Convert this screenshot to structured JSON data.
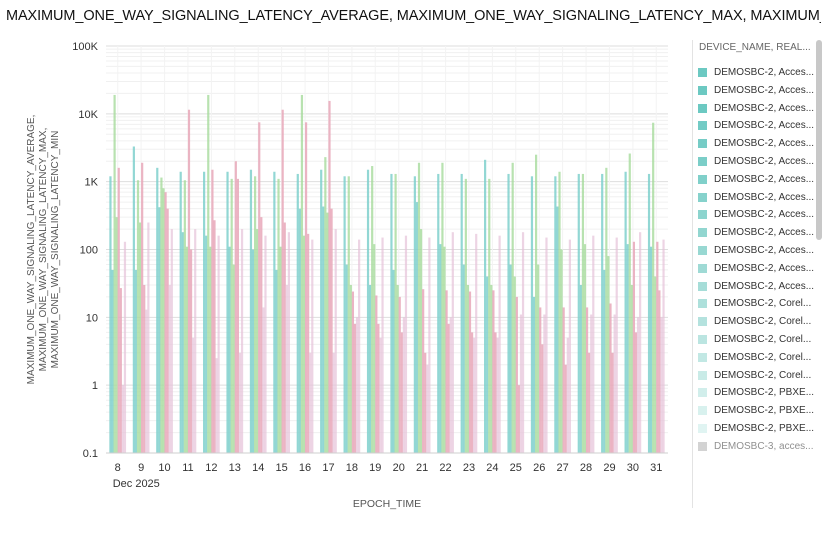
{
  "chart_title": "MAXIMUM_ONE_WAY_SIGNALING_LATENCY_AVERAGE, MAXIMUM_ONE_WAY_SIGNALING_LATENCY_MAX, MAXIMUM_ONE_WAY_",
  "chart_data": {
    "type": "bar",
    "xlabel": "EPOCH_TIME",
    "x_sublabel": "Dec 2025",
    "ylabel": [
      "MAXIMUM_ONE_WAY_SIGNALING_LATENCY_AVERAGE,",
      "MAXIMUM_ONE_WAY_SIGNALING_LATENCY_MAX,",
      "MAXIMUM_ONE_WAY_SIGNALING_LATENCY_MIN"
    ],
    "yscale": "log",
    "ylim": [
      0.1,
      100000
    ],
    "yticks": [
      {
        "value": 0.1,
        "label": "0.1"
      },
      {
        "value": 1,
        "label": "1"
      },
      {
        "value": 10,
        "label": "10"
      },
      {
        "value": 100,
        "label": "100"
      },
      {
        "value": 1000,
        "label": "1K"
      },
      {
        "value": 10000,
        "label": "10K"
      },
      {
        "value": 100000,
        "label": "100K"
      }
    ],
    "categories": [
      "8",
      "9",
      "10",
      "11",
      "12",
      "13",
      "14",
      "15",
      "16",
      "17",
      "18",
      "19",
      "20",
      "21",
      "22",
      "23",
      "24",
      "25",
      "26",
      "27",
      "28",
      "29",
      "30",
      "31"
    ],
    "grid": true,
    "legend_placement": "right",
    "colors": {
      "average": "#7fd0cc",
      "max": "#a6db9c",
      "min": "#e7a7b8",
      "faint": "#e6c2d8"
    },
    "series": [
      {
        "group": "average",
        "values": [
          1200,
          3300,
          1600,
          1400,
          1400,
          1400,
          1500,
          1400,
          1300,
          1500,
          1200,
          1500,
          1300,
          1200,
          1300,
          1300,
          2100,
          1300,
          1200,
          1200,
          1300,
          1300,
          1400,
          1300
        ]
      },
      {
        "group": "average",
        "values": [
          50,
          50,
          420,
          180,
          160,
          110,
          100,
          50,
          400,
          430,
          60,
          30,
          50,
          500,
          120,
          60,
          40,
          60,
          20,
          430,
          30,
          50,
          120,
          110
        ]
      },
      {
        "group": "max",
        "values": [
          19000,
          1050,
          1150,
          1050,
          19000,
          1100,
          1200,
          1100,
          19000,
          2300,
          1200,
          1700,
          1300,
          1900,
          1900,
          1100,
          1100,
          1900,
          2500,
          1400,
          1300,
          1600,
          2600,
          7400
        ]
      },
      {
        "group": "max",
        "values": [
          300,
          250,
          800,
          110,
          110,
          60,
          200,
          110,
          160,
          350,
          30,
          120,
          30,
          200,
          110,
          30,
          30,
          40,
          60,
          100,
          120,
          80,
          30,
          40
        ]
      },
      {
        "group": "min",
        "values": [
          1600,
          1900,
          700,
          11500,
          1500,
          2000,
          7500,
          11500,
          7500,
          15500,
          24,
          21,
          20,
          26,
          25,
          24,
          25,
          20,
          14,
          14,
          14,
          16,
          130,
          130
        ]
      },
      {
        "group": "min",
        "values": [
          27,
          30,
          400,
          100,
          270,
          1100,
          300,
          250,
          170,
          400,
          8,
          8,
          6,
          3,
          8,
          6,
          6,
          1,
          4,
          2,
          3,
          3,
          6,
          25
        ]
      },
      {
        "group": "faint",
        "values": [
          1,
          13,
          30,
          5,
          2.5,
          3,
          14,
          30,
          3,
          3,
          10,
          5,
          10,
          2,
          10,
          5,
          5,
          11,
          11,
          5,
          11,
          11,
          10,
          10
        ]
      },
      {
        "group": "faint",
        "values": [
          130,
          250,
          200,
          200,
          160,
          200,
          160,
          180,
          140,
          200,
          140,
          150,
          160,
          150,
          180,
          170,
          160,
          180,
          150,
          140,
          160,
          150,
          180,
          140
        ]
      }
    ]
  },
  "legend": {
    "title": "DEVICE_NAME, REAL...",
    "items": [
      {
        "label": "DEMOSBC-2, Acces...",
        "color": "#6cc9c2"
      },
      {
        "label": "DEMOSBC-2, Acces...",
        "color": "#6cc9c2"
      },
      {
        "label": "DEMOSBC-2, Acces...",
        "color": "#6cc9c2"
      },
      {
        "label": "DEMOSBC-2, Acces...",
        "color": "#72cbc5"
      },
      {
        "label": "DEMOSBC-2, Acces...",
        "color": "#76ccc6"
      },
      {
        "label": "DEMOSBC-2, Acces...",
        "color": "#7bcec8"
      },
      {
        "label": "DEMOSBC-2, Acces...",
        "color": "#80d0ca"
      },
      {
        "label": "DEMOSBC-2, Acces...",
        "color": "#86d2cc"
      },
      {
        "label": "DEMOSBC-2, Acces...",
        "color": "#8cd4ce"
      },
      {
        "label": "DEMOSBC-2, Acces...",
        "color": "#92d6d0"
      },
      {
        "label": "DEMOSBC-2, Acces...",
        "color": "#98d8d2"
      },
      {
        "label": "DEMOSBC-2, Acces...",
        "color": "#9fdad5"
      },
      {
        "label": "DEMOSBC-2, Acces...",
        "color": "#a6ddd8"
      },
      {
        "label": "DEMOSBC-2, Corel...",
        "color": "#ade0db"
      },
      {
        "label": "DEMOSBC-2, Corel...",
        "color": "#b4e2de"
      },
      {
        "label": "DEMOSBC-2, Corel...",
        "color": "#bbe5e1"
      },
      {
        "label": "DEMOSBC-2, Corel...",
        "color": "#c2e8e4"
      },
      {
        "label": "DEMOSBC-2, Corel...",
        "color": "#c9ebe7"
      },
      {
        "label": "DEMOSBC-2, PBXE...",
        "color": "#d1eeeb"
      },
      {
        "label": "DEMOSBC-2, PBXE...",
        "color": "#d8f1ee"
      },
      {
        "label": "DEMOSBC-2, PBXE...",
        "color": "#e0f4f2"
      },
      {
        "label": "DEMOSBC-3, acces...",
        "color": "#b0b0b0",
        "faded": true
      }
    ]
  }
}
